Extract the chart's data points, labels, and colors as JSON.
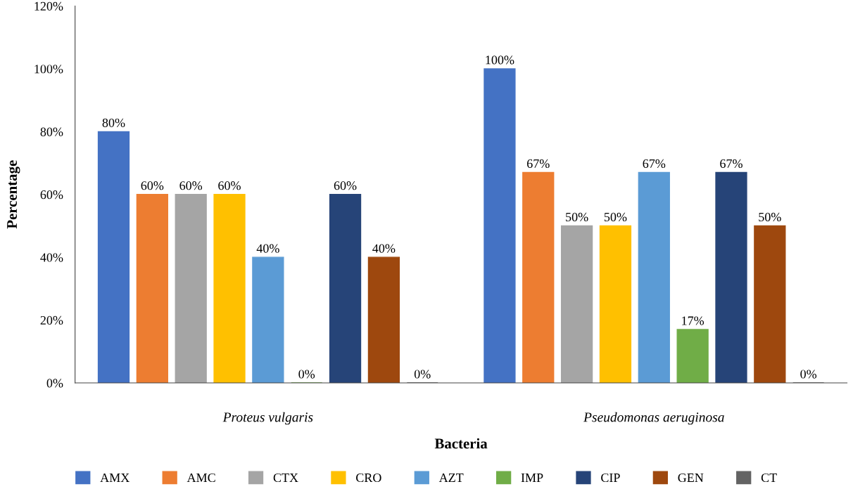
{
  "chart_data": {
    "type": "bar",
    "xlabel": "Bacteria",
    "ylabel": "Percentage",
    "categories": [
      "Proteus vulgaris",
      "Pseudomonas aeruginosa"
    ],
    "series": [
      {
        "name": "AMX",
        "color": "#4472c4",
        "values": [
          80,
          100
        ],
        "value_labels": [
          "80%",
          "100%"
        ]
      },
      {
        "name": "AMC",
        "color": "#ed7d31",
        "values": [
          60,
          67
        ],
        "value_labels": [
          "60%",
          "67%"
        ]
      },
      {
        "name": "CTX",
        "color": "#a5a5a5",
        "values": [
          60,
          50
        ],
        "value_labels": [
          "60%",
          "50%"
        ]
      },
      {
        "name": "CRO",
        "color": "#ffc000",
        "values": [
          60,
          50
        ],
        "value_labels": [
          "60%",
          "50%"
        ]
      },
      {
        "name": "AZT",
        "color": "#5b9bd5",
        "values": [
          40,
          67
        ],
        "value_labels": [
          "40%",
          "67%"
        ]
      },
      {
        "name": "IMP",
        "color": "#70ad47",
        "values": [
          0,
          17
        ],
        "value_labels": [
          "0%",
          "17%"
        ]
      },
      {
        "name": "CIP",
        "color": "#264478",
        "values": [
          60,
          67
        ],
        "value_labels": [
          "60%",
          "67%"
        ]
      },
      {
        "name": "GEN",
        "color": "#9e480e",
        "values": [
          40,
          50
        ],
        "value_labels": [
          "40%",
          "50%"
        ]
      },
      {
        "name": "CT",
        "color": "#636363",
        "values": [
          0,
          0
        ],
        "value_labels": [
          "0%",
          "0%"
        ]
      }
    ],
    "ylim": [
      0,
      120
    ],
    "yticks": [
      {
        "value": 0,
        "label": "0%"
      },
      {
        "value": 20,
        "label": "20%"
      },
      {
        "value": 40,
        "label": "40%"
      },
      {
        "value": 60,
        "label": "60%"
      },
      {
        "value": 80,
        "label": "80%"
      },
      {
        "value": 100,
        "label": "100%"
      },
      {
        "value": 120,
        "label": "120%"
      }
    ],
    "grid": false,
    "legend": "bottom"
  }
}
